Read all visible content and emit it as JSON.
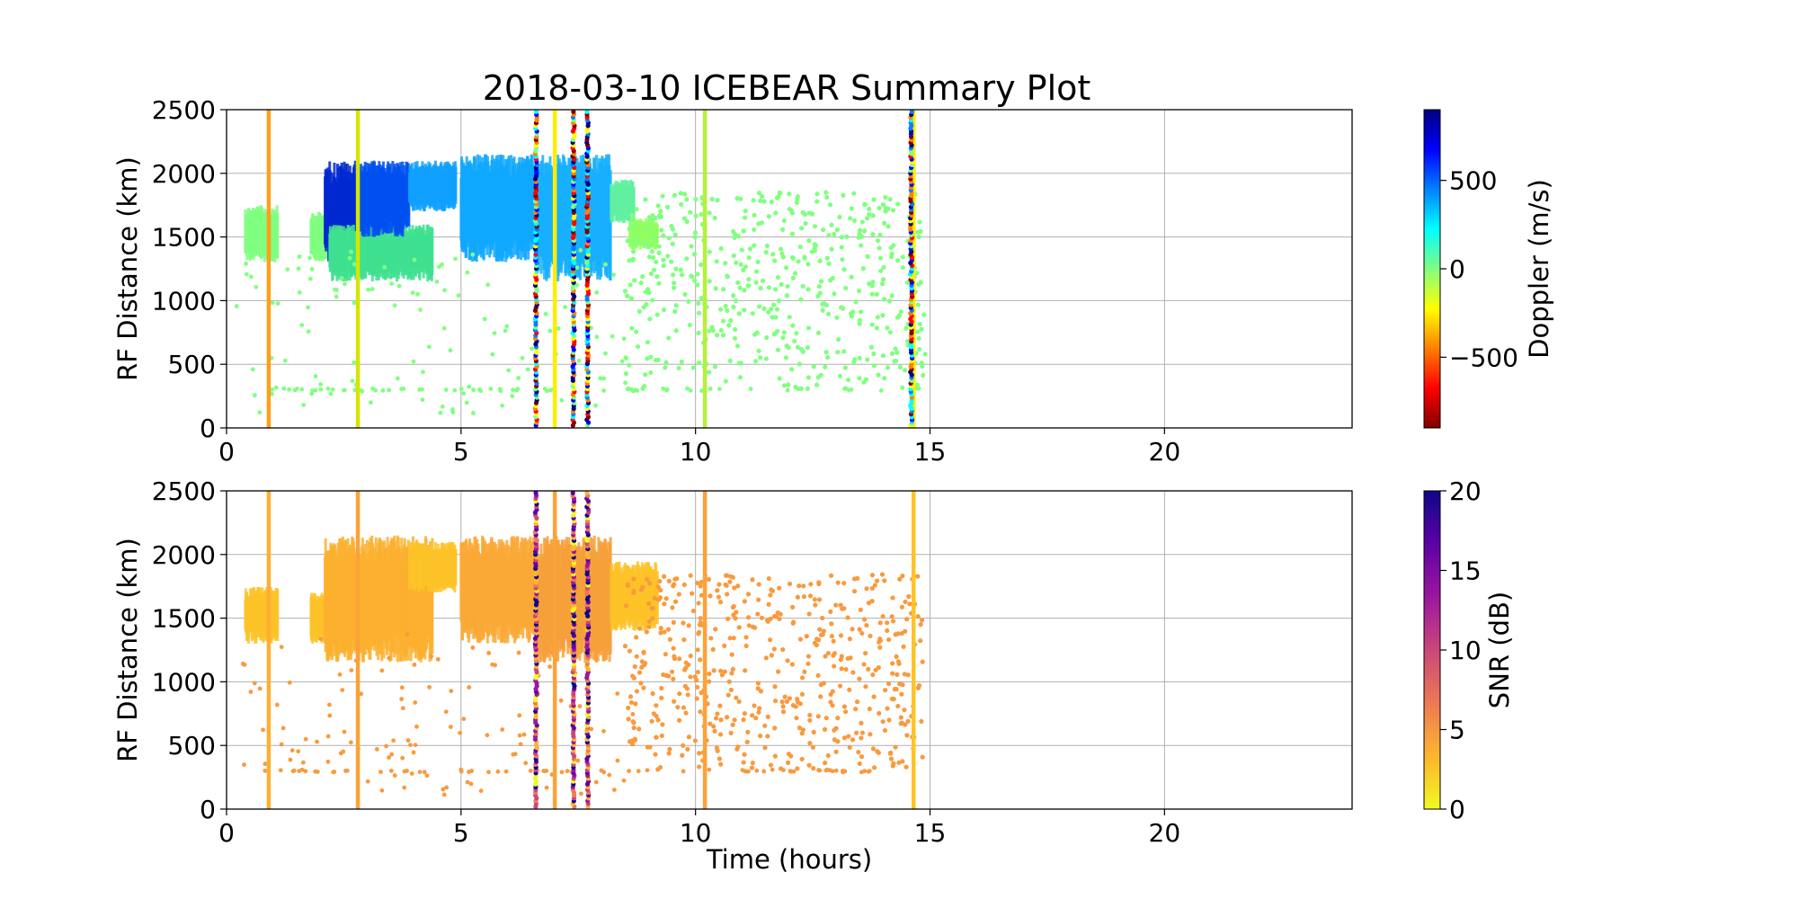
{
  "figure_title": "2018-03-10 ICEBEAR Summary Plot",
  "chart_data": [
    {
      "type": "scatter",
      "title": "2018-03-10 ICEBEAR Summary Plot",
      "xlabel": "",
      "ylabel": "RF Distance (km)",
      "xlim": [
        0,
        24
      ],
      "ylim": [
        0,
        2500
      ],
      "xticks": [
        0,
        5,
        10,
        15,
        20
      ],
      "yticks": [
        0,
        500,
        1000,
        1500,
        2000,
        2500
      ],
      "grid": true,
      "colorbar": {
        "label": "Doppler (m/s)",
        "colormap": "jet_r",
        "range": [
          -900,
          900
        ],
        "ticks": [
          -500,
          0,
          500
        ],
        "tick_labels": [
          "−500",
          "0",
          "500"
        ],
        "colors": [
          "#800000",
          "#ff0000",
          "#ff8000",
          "#ffff00",
          "#80ff80",
          "#00ffff",
          "#0080ff",
          "#0000ff",
          "#000080"
        ]
      },
      "vertical_streaks": [
        {
          "t": 0.9,
          "color": "#ff9f1a"
        },
        {
          "t": 2.8,
          "color": "#d4e600"
        },
        {
          "t": 7.0,
          "color": "#ffee00"
        },
        {
          "t": 10.2,
          "color": "#b5f03c"
        },
        {
          "t": 14.65,
          "color": "#ffee00"
        }
      ],
      "multicolor_streaks": [
        6.6,
        7.4,
        7.7,
        14.6
      ],
      "clusters": [
        {
          "t0": 0.4,
          "t1": 1.1,
          "r0": 1300,
          "r1": 1750,
          "color": "#80ff80"
        },
        {
          "t0": 1.8,
          "t1": 2.2,
          "r0": 1300,
          "r1": 1700,
          "color": "#80ff80"
        },
        {
          "t0": 2.1,
          "t1": 2.8,
          "r0": 1300,
          "r1": 2100,
          "color": "#0028d0"
        },
        {
          "t0": 2.2,
          "t1": 4.4,
          "r0": 1150,
          "r1": 1600,
          "color": "#40e090"
        },
        {
          "t0": 2.8,
          "t1": 3.9,
          "r0": 1500,
          "r1": 2100,
          "color": "#0050f0"
        },
        {
          "t0": 3.9,
          "t1": 4.9,
          "r0": 1700,
          "r1": 2100,
          "color": "#10a0ff"
        },
        {
          "t0": 5.0,
          "t1": 6.6,
          "r0": 1300,
          "r1": 2150,
          "color": "#10a8ff"
        },
        {
          "t0": 6.6,
          "t1": 8.2,
          "r0": 1150,
          "r1": 2150,
          "color": "#18b0ff"
        },
        {
          "t0": 8.2,
          "t1": 8.7,
          "r0": 1600,
          "r1": 1950,
          "color": "#60f0a0"
        },
        {
          "t0": 8.6,
          "t1": 9.2,
          "r0": 1400,
          "r1": 1650,
          "color": "#90ff60"
        }
      ],
      "scatter_region": {
        "t0": 8.5,
        "t1": 14.9,
        "r0": 300,
        "r1": 1850,
        "color": "#80ff80"
      }
    },
    {
      "type": "scatter",
      "title": "",
      "xlabel": "Time (hours)",
      "ylabel": "RF Distance (km)",
      "xlim": [
        0,
        24
      ],
      "ylim": [
        0,
        2500
      ],
      "xticks": [
        0,
        5,
        10,
        15,
        20
      ],
      "yticks": [
        0,
        500,
        1000,
        1500,
        2000,
        2500
      ],
      "grid": true,
      "colorbar": {
        "label": "SNR (dB)",
        "colormap": "plasma_r",
        "range": [
          0,
          20
        ],
        "ticks": [
          0,
          5,
          10,
          15,
          20
        ],
        "tick_labels": [
          "0",
          "5",
          "10",
          "15",
          "20"
        ],
        "colors": [
          "#f0f921",
          "#fdb42f",
          "#ed7953",
          "#cc4778",
          "#9c179e",
          "#5c01a6",
          "#0d0887"
        ]
      },
      "vertical_streaks": [
        {
          "t": 0.9,
          "color": "#fdae35"
        },
        {
          "t": 2.8,
          "color": "#fba238"
        },
        {
          "t": 7.0,
          "color": "#fba238"
        },
        {
          "t": 10.2,
          "color": "#fba238"
        },
        {
          "t": 14.65,
          "color": "#fdc328"
        }
      ],
      "multicolor_streaks": [
        6.6,
        7.4,
        7.7
      ],
      "clusters": [
        {
          "t0": 0.4,
          "t1": 1.1,
          "r0": 1300,
          "r1": 1750,
          "color": "#fdc328"
        },
        {
          "t0": 1.8,
          "t1": 2.2,
          "r0": 1300,
          "r1": 1700,
          "color": "#fdc328"
        },
        {
          "t0": 2.1,
          "t1": 4.4,
          "r0": 1150,
          "r1": 2150,
          "color": "#fbb02f"
        },
        {
          "t0": 3.9,
          "t1": 4.9,
          "r0": 1700,
          "r1": 2100,
          "color": "#fdc328"
        },
        {
          "t0": 5.0,
          "t1": 6.6,
          "r0": 1300,
          "r1": 2150,
          "color": "#f9a936"
        },
        {
          "t0": 6.6,
          "t1": 8.2,
          "r0": 1150,
          "r1": 2150,
          "color": "#f6a03b"
        },
        {
          "t0": 8.2,
          "t1": 9.2,
          "r0": 1400,
          "r1": 1950,
          "color": "#fdc328"
        }
      ],
      "scatter_region": {
        "t0": 8.5,
        "t1": 14.9,
        "r0": 300,
        "r1": 1850,
        "color": "#f99a3e"
      }
    }
  ]
}
